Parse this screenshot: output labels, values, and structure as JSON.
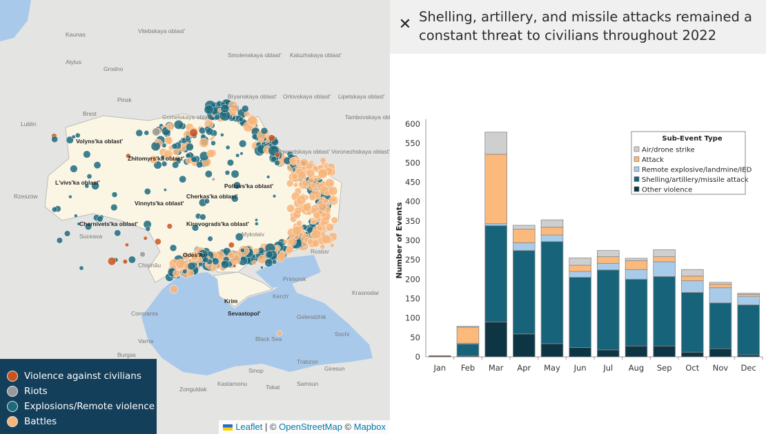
{
  "map": {
    "legend": [
      {
        "label": "Violence against civilians",
        "color": "#c9531d"
      },
      {
        "label": "Riots",
        "color": "#999999"
      },
      {
        "label": "Explosions/Remote violence",
        "color": "#1e6a7d"
      },
      {
        "label": "Battles",
        "color": "#f8b57a"
      }
    ],
    "attribution": {
      "leaflet": "Leaflet",
      "sep": " | © ",
      "osm": "OpenStreetMap",
      "mb_prefix": " © ",
      "mapbox": "Mapbox"
    },
    "labels": [
      "Vitebskaya oblast'",
      "Smolenskaya oblast'",
      "Kaluzhskaya oblast'",
      "Bryanskaya oblast'",
      "Orlovskaya oblast'",
      "Lipetskaya oblast'",
      "Tambovskaya oblast'",
      "Gomelskaya oblast'",
      "Belgorodskaya oblast'",
      "Voronezhskaya oblast'",
      "Volyns'ka oblast'",
      "Zhitomyrs'ka oblast'",
      "L'vivs'ka oblast'",
      "Cherkas'ka oblast'",
      "Kirovograds'ka oblast'",
      "Vinnyts'ka oblast'",
      "Chernivets'ka oblast'",
      "Poltavs'ka oblast'",
      "Odes'ka",
      "Krim",
      "Sevastopol'",
      "Black Sea",
      "Kaunas",
      "Alytus",
      "Grodno",
      "Brest",
      "Pinsk",
      "Lublin",
      "Rzeszów",
      "Suceava",
      "Chişinău",
      "Rostov",
      "Krasnodar",
      "Constanta",
      "Varna",
      "Burgas",
      "Sinop",
      "Samsun",
      "Trabzon",
      "Kastamonu",
      "Zonguldak",
      "Tokat",
      "Giresun",
      "Sochi",
      "Gelendzhik",
      "Kerch'",
      "Primorsk",
      "Mykolaiv"
    ]
  },
  "panel": {
    "close_icon": "close-icon",
    "title": "Shelling, artillery, and missile attacks remained a constant threat to civilians throughout 2022"
  },
  "chart_data": {
    "type": "bar",
    "stacked": true,
    "title": "",
    "xlabel": "",
    "ylabel": "Number of Events",
    "ylim": [
      0,
      600
    ],
    "yticks": [
      0,
      50,
      100,
      150,
      200,
      250,
      300,
      350,
      400,
      450,
      500,
      550,
      600
    ],
    "categories": [
      "Jan",
      "Feb",
      "Mar",
      "Apr",
      "May",
      "Jun",
      "Jul",
      "Aug",
      "Sep",
      "Oct",
      "Nov",
      "Dec"
    ],
    "legend_title": "Sub-Event Type",
    "legend_position": "top-right",
    "series": [
      {
        "name": "Other violence",
        "color": "#0e3544",
        "values": [
          3,
          2,
          90,
          59,
          34,
          24,
          18,
          28,
          28,
          12,
          21,
          5
        ]
      },
      {
        "name": "Shelling/artillery/missile attack",
        "color": "#17647a",
        "values": [
          0,
          32,
          248,
          215,
          263,
          181,
          206,
          172,
          179,
          154,
          118,
          129
        ]
      },
      {
        "name": "Remote explosive/landmine/IED",
        "color": "#a8cbea",
        "values": [
          0,
          1,
          5,
          20,
          17,
          15,
          17,
          25,
          38,
          30,
          39,
          22
        ]
      },
      {
        "name": "Attack",
        "color": "#fbb97c",
        "values": [
          0,
          41,
          179,
          35,
          20,
          16,
          17,
          23,
          13,
          12,
          9,
          5
        ]
      },
      {
        "name": "Air/drone strike",
        "color": "#cfcfcf",
        "values": [
          0,
          3,
          57,
          10,
          19,
          19,
          16,
          6,
          18,
          17,
          5,
          3
        ]
      }
    ]
  }
}
